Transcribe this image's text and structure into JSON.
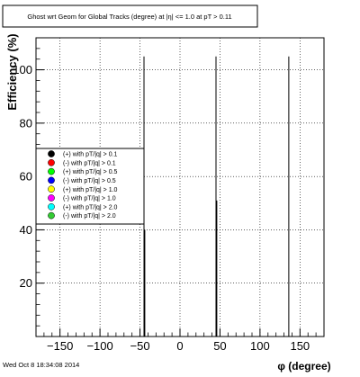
{
  "chart_data": {
    "type": "bar",
    "title": "Ghost wrt Geom for Global Tracks (degree) at |η| <= 1.0 at pT > 0.11",
    "xlabel": "φ (degree)",
    "ylabel": "Efficiency (%)",
    "xlim": [
      -180,
      180
    ],
    "ylim": [
      0,
      112
    ],
    "xticks": [
      -150,
      -100,
      -50,
      0,
      50,
      100,
      150
    ],
    "xtick_labels": [
      "−150",
      "−100",
      "−50",
      "0",
      "50",
      "100",
      "150"
    ],
    "yticks": [
      20,
      40,
      60,
      80,
      100
    ],
    "grid": true,
    "legend_position": "left-middle",
    "series": [
      {
        "name": "(+) with pT/|q| > 0.1",
        "color": "#000000",
        "marker": "circle",
        "points": []
      },
      {
        "name": "(-) with pT/|q| > 0.1",
        "color": "#ff0000",
        "marker": "circle",
        "points": []
      },
      {
        "name": "(+) with pT/|q| > 0.5",
        "color": "#00ff00",
        "marker": "circle",
        "points": []
      },
      {
        "name": "(-) with pT/|q| > 0.5",
        "color": "#0000ff",
        "marker": "circle",
        "points": []
      },
      {
        "name": "(+) with pT/|q| > 1.0",
        "color": "#ffff00",
        "marker": "circle",
        "points": []
      },
      {
        "name": "(-) with pT/|q| > 1.0",
        "color": "#ff00ff",
        "marker": "circle",
        "points": []
      },
      {
        "name": "(+) with pT/|q| > 2.0",
        "color": "#00ffff",
        "marker": "circle",
        "points": []
      },
      {
        "name": "(-) with pT/|q| > 2.0",
        "color": "#33cc33",
        "marker": "circle",
        "points": []
      }
    ],
    "spikes": [
      {
        "x": -45,
        "y": 105
      },
      {
        "x": -44,
        "y": 40
      },
      {
        "x": 45,
        "y": 105
      },
      {
        "x": 46,
        "y": 51
      },
      {
        "x": 136,
        "y": 105
      }
    ]
  },
  "footer": {
    "timestamp": "Wed Oct  8 18:34:08 2014"
  }
}
